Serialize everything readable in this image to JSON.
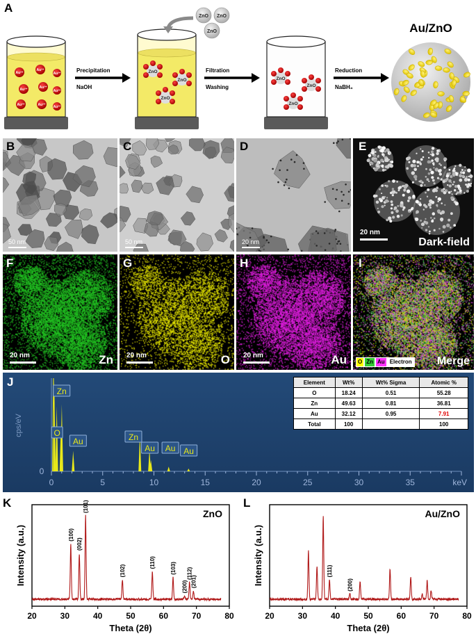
{
  "panels": {
    "A": "A",
    "B": "B",
    "C": "C",
    "D": "D",
    "E": "E",
    "F": "F",
    "G": "G",
    "H": "H",
    "I": "I",
    "J": "J",
    "K": "K",
    "L": "L"
  },
  "schematic": {
    "ion_label": "Au³⁺",
    "particle_label": "ZnO",
    "product_title": "Au/ZnO",
    "steps": [
      {
        "top": "Precipitation",
        "bottom": "NaOH"
      },
      {
        "top": "Filtration",
        "bottom": "Washing"
      },
      {
        "top": "Reduction",
        "bottom": "NaBH₄"
      }
    ]
  },
  "micrographs": {
    "B_scale": "50 nm",
    "C_scale": "50 nm",
    "D_scale": "20 nm",
    "E_scale": "20 nm",
    "E_label": "Dark-field"
  },
  "eds_maps": {
    "F": {
      "scale": "20 nm",
      "label": "Zn",
      "color": "#22c322"
    },
    "G": {
      "scale": "20 nm",
      "label": "O",
      "color": "#e6e600"
    },
    "H": {
      "scale": "20 nm",
      "label": "Au",
      "color": "#e01ee0"
    },
    "I": {
      "scale": "",
      "label": "Merge"
    },
    "legend": [
      {
        "name": "O",
        "color": "#ffff00"
      },
      {
        "name": "Zn",
        "color": "#33cc33"
      },
      {
        "name": "Au",
        "color": "#ff33ff"
      },
      {
        "name": "Electron",
        "color": "#ffffff"
      }
    ]
  },
  "spectrum": {
    "ylabel": "cps/eV",
    "xunit": "keV",
    "zero": "0",
    "ticks": [
      "0",
      "5",
      "10",
      "15",
      "20",
      "25",
      "30",
      "35"
    ],
    "peak_labels": [
      "Zn",
      "O",
      "Au",
      "Zn",
      "Au",
      "Au",
      "Au"
    ]
  },
  "composition_table": {
    "headers": [
      "Element",
      "Wt%",
      "Wt% Sigma",
      "Atomic %"
    ],
    "rows": [
      [
        "O",
        "18.24",
        "0.51",
        "55.28"
      ],
      [
        "Zn",
        "49.63",
        "0.81",
        "36.81"
      ],
      [
        "Au",
        "32.12",
        "0.95",
        "7.91"
      ],
      [
        "Total",
        "100",
        "",
        "100"
      ]
    ],
    "highlight_color": "#e00000"
  },
  "chart_data": [
    {
      "type": "line",
      "panel": "K",
      "title": "ZnO",
      "xlabel": "Theta (2θ)",
      "ylabel": "Intensity (a.u.)",
      "xlim": [
        20,
        80
      ],
      "xticks": [
        20,
        30,
        40,
        50,
        60,
        70,
        80
      ],
      "color": "#b01818",
      "peaks": [
        {
          "x": 31.8,
          "h": 0.66,
          "label": "(100)"
        },
        {
          "x": 34.4,
          "h": 0.55,
          "label": "(002)"
        },
        {
          "x": 36.3,
          "h": 1.0,
          "label": "(101)"
        },
        {
          "x": 47.5,
          "h": 0.23,
          "label": "(102)"
        },
        {
          "x": 56.6,
          "h": 0.33,
          "label": "(110)"
        },
        {
          "x": 62.9,
          "h": 0.26,
          "label": "(103)"
        },
        {
          "x": 66.4,
          "h": 0.04,
          "label": "(200)"
        },
        {
          "x": 67.9,
          "h": 0.2,
          "label": "(112)"
        },
        {
          "x": 69.1,
          "h": 0.1,
          "label": "(201)"
        }
      ]
    },
    {
      "type": "line",
      "panel": "L",
      "title": "Au/ZnO",
      "xlabel": "Theta (2θ)",
      "ylabel": "Intensity (a.u.)",
      "xlim": [
        20,
        80
      ],
      "xticks": [
        20,
        30,
        40,
        50,
        60,
        70,
        80
      ],
      "color": "#b01818",
      "peaks": [
        {
          "x": 31.8,
          "h": 0.58,
          "label": ""
        },
        {
          "x": 34.4,
          "h": 0.4,
          "label": ""
        },
        {
          "x": 36.3,
          "h": 1.0,
          "label": ""
        },
        {
          "x": 38.2,
          "h": 0.23,
          "label": "(111)"
        },
        {
          "x": 44.4,
          "h": 0.06,
          "label": "(200)"
        },
        {
          "x": 47.5,
          "h": 0.22,
          "label": ""
        },
        {
          "x": 56.6,
          "h": 0.36,
          "label": ""
        },
        {
          "x": 62.9,
          "h": 0.27,
          "label": ""
        },
        {
          "x": 66.4,
          "h": 0.06,
          "label": ""
        },
        {
          "x": 67.9,
          "h": 0.22,
          "label": ""
        },
        {
          "x": 69.1,
          "h": 0.1,
          "label": ""
        }
      ]
    }
  ]
}
